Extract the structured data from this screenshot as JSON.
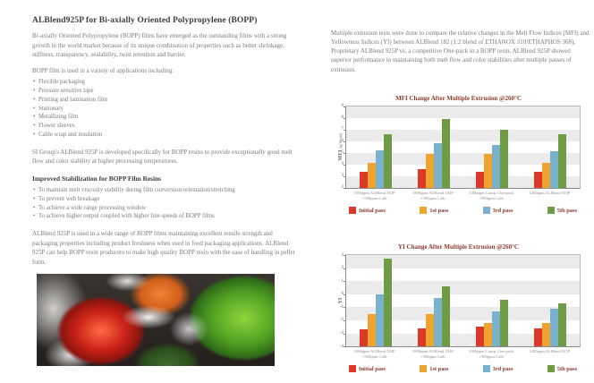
{
  "left": {
    "title": "ALBlend925P for Bi-axially Oriented Polypropylene (BOPP)",
    "para1": "Bi-axially Oriented Polypropylene (BOPP) films have emerged as the outstanding films with a strong growth in the world market because of its unique combination of properties such as better shrinkage, stiffness, transparency, sealability, twist retention and barrier.",
    "applications_intro": "BOPP film is used in a variety of applications including:",
    "applications": [
      "Flexible packaging",
      "Pressure sensitive tape",
      "Printing and lamination film",
      "Stationary",
      "Metallizing film",
      "Flower sleeves",
      "Cable wrap and insulation"
    ],
    "para2": "SI Group's ALBlend 925P is developed specifically for BOPP resins to provide exceptionally good melt flow and color stability at higher processing temperatures.",
    "subhead": "Improved Stabilization for BOPP Film Resins",
    "benefits": [
      "To maintain melt viscosity stability during film conversion/orientation/stretching",
      "To prevent web breakage",
      "To achieve a wide range processing window",
      "To achieve higher output coupled with higher line speeds of BOPP films"
    ],
    "para3": "ALBlend 925P is used in a wide range of BOPP films maintaining excellent tensile strength and packaging properties including product freshness when used in food packaging applications. ALBlend 925P can help BOPP resin producers to make high quality BOPP resin with the ease of handling in pellet form."
  },
  "right": {
    "intro": "Multiple extrusion tests were done to compare the relative changes in the Melt Flow Indices (MFI) and Yellowness Indices (YI)  between ALBlend 182 (1:2 blend of ETHANOX 310/ETHAPHOS 368), Proprietary ALBlend 925P vs. a competitive One-pack in  a BOPP resin. ALBlend 925P showed superior performance in maintaining both melt flow and color stabilities after multiple passes of extrusion."
  },
  "colors": {
    "initial_pass": "#dc392b",
    "first_pass": "#f1a32f",
    "third_pass": "#7ab1cd",
    "fifth_pass": "#6f9b45",
    "chart_text": "#8a3b2b",
    "band_gray": "#ebebeb"
  },
  "chart_data": [
    {
      "type": "bar",
      "title": "MFI Change After Multiple Extrusion @260°C",
      "ylabel": "MFI (g/10min)",
      "ylim": [
        2,
        9
      ],
      "yticks": [
        2,
        3,
        4,
        5,
        6,
        7,
        8,
        9
      ],
      "grid": "banded",
      "legend_position": "bottom",
      "categories": [
        {
          "line1": "1000ppm ALBlend 182P",
          "line2": "+500ppm CaSt"
        },
        {
          "line1": "1800ppm ALBlend 182P",
          "line2": "+500ppm CaSt"
        },
        {
          "line1": "1000ppm Comp. One-pack",
          "line2": "+500ppm CaSt"
        },
        {
          "line1": "1400ppm ALBlend 925P",
          "line2": ""
        }
      ],
      "series": [
        {
          "name": "Initial pass",
          "color": "#dc392b",
          "values": [
            3.4,
            3.6,
            3.4,
            3.4
          ]
        },
        {
          "name": "1st pass",
          "color": "#f1a32f",
          "values": [
            4.1,
            4.9,
            4.9,
            4.1
          ]
        },
        {
          "name": "3rd pass",
          "color": "#7ab1cd",
          "values": [
            5.2,
            5.8,
            5.7,
            5.1
          ]
        },
        {
          "name": "5th pass",
          "color": "#6f9b45",
          "values": [
            6.6,
            7.9,
            7.0,
            6.6
          ]
        }
      ]
    },
    {
      "type": "bar",
      "title": "YI Change After Multiple Extrusion @260°C",
      "ylabel": "YI",
      "ylim": [
        -4,
        3
      ],
      "yticks": [
        -4,
        -3,
        -2,
        -1,
        0,
        1,
        2,
        3
      ],
      "grid": "banded",
      "legend_position": "bottom",
      "categories": [
        {
          "line1": "1000ppm ALBlend 182P",
          "line2": "+500ppm CaSt"
        },
        {
          "line1": "1800ppm ALBlend 182P",
          "line2": "+500ppm CaSt"
        },
        {
          "line1": "1000ppm Comp. One-pack",
          "line2": "+500ppm CaSt"
        },
        {
          "line1": "1400ppm ALBlend 925P",
          "line2": ""
        }
      ],
      "series": [
        {
          "name": "Initial pass",
          "color": "#dc392b",
          "values": [
            -2.7,
            -2.6,
            -2.5,
            -2.6
          ]
        },
        {
          "name": "1st pass",
          "color": "#f1a32f",
          "values": [
            -1.5,
            -1.5,
            -2.2,
            -2.2
          ]
        },
        {
          "name": "3rd pass",
          "color": "#7ab1cd",
          "values": [
            0.0,
            -0.3,
            -1.3,
            -1.1
          ]
        },
        {
          "name": "5th pass",
          "color": "#6f9b45",
          "values": [
            2.7,
            0.6,
            -0.4,
            -0.7
          ]
        }
      ]
    }
  ]
}
